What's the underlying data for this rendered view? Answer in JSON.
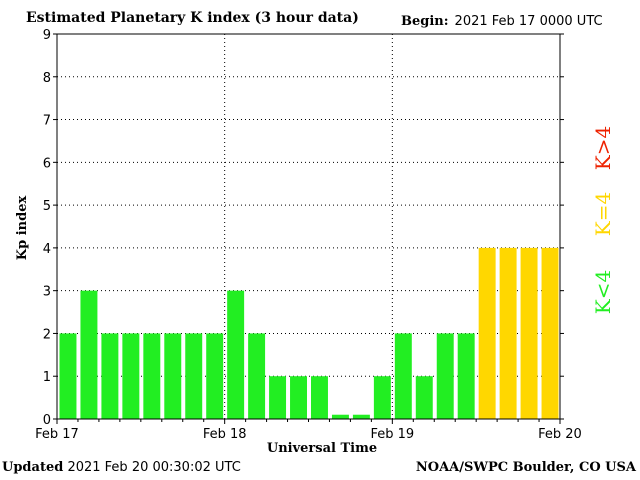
{
  "header": {
    "title": "Estimated Planetary K index (3 hour data)",
    "begin_label": "Begin:",
    "begin_value": "2021 Feb 17 0000 UTC"
  },
  "footer": {
    "updated_label": "Updated",
    "updated_value": "2021 Feb 20 00:30:02 UTC",
    "source": "NOAA/SWPC Boulder, CO USA"
  },
  "legend": [
    {
      "label": "K<4",
      "color": "#22ee22"
    },
    {
      "label": "K=4",
      "color": "#ffd700"
    },
    {
      "label": "K>4",
      "color": "#ee2200"
    }
  ],
  "chart_data": {
    "type": "bar",
    "title": "Estimated Planetary K index (3 hour data)",
    "xlabel": "Universal Time",
    "ylabel": "Kp index",
    "ylim": [
      0,
      9
    ],
    "y_ticks": [
      "0",
      "1",
      "2",
      "3",
      "4",
      "5",
      "6",
      "7",
      "8",
      "9"
    ],
    "x_tick_labels": [
      "Feb 17",
      "Feb 18",
      "Feb 19",
      "Feb 20"
    ],
    "grid": true,
    "intervals": 24,
    "values": [
      2,
      3,
      2,
      2,
      2,
      2,
      2,
      2,
      3,
      2,
      1,
      1,
      1,
      0.1,
      0.1,
      1,
      2,
      1,
      2,
      2,
      4,
      4,
      4,
      4
    ],
    "colors": {
      "below": "#22ee22",
      "equal": "#ffd700",
      "above": "#ee2200"
    }
  }
}
